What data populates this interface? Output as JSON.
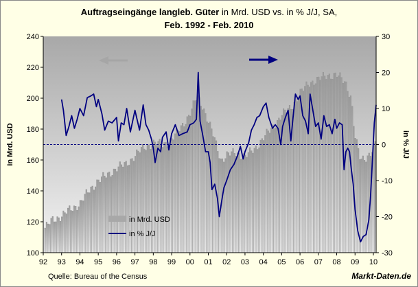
{
  "title": {
    "main_bold": "Auftragseingänge langleb. Güter",
    "main_rest": " in Mrd. USD vs. in % J/J, SA,",
    "period": "Feb. 1992 - Feb. 2010"
  },
  "footer": {
    "source": "Quelle: Bureau of the Census",
    "brand": "Markt-Daten.de"
  },
  "colors": {
    "plot_bg": "#c0c0c0",
    "bars": "#a8a8a8",
    "line": "#000080",
    "left_arrow": "#a6a6a6",
    "right_arrow": "#000080",
    "page_bg": "#ffffe6"
  },
  "chart_data": {
    "type": "bar+line",
    "title": "Auftragseingänge langleb. Güter in Mrd. USD vs. in % J/J, SA, Feb. 1992 - Feb. 2010",
    "x_tick_labels": [
      "92",
      "93",
      "94",
      "95",
      "96",
      "97",
      "98",
      "99",
      "00",
      "01",
      "02",
      "03",
      "04",
      "05",
      "06",
      "07",
      "08",
      "09",
      "10"
    ],
    "x_range": [
      1992.0,
      2010.15
    ],
    "left_axis": {
      "label": "in Mrd. USD",
      "min": 100,
      "max": 240,
      "ticks": [
        100,
        120,
        140,
        160,
        180,
        200,
        220,
        240
      ]
    },
    "right_axis": {
      "label": "in % J/J",
      "min": -30,
      "max": 30,
      "ticks": [
        -30,
        -20,
        -10,
        0,
        10,
        20,
        30
      ]
    },
    "zero_line_right": 0,
    "legend": {
      "position": "bottom-left",
      "entries": [
        "in Mrd. USD",
        "in % J/J"
      ]
    },
    "series": [
      {
        "name": "in Mrd. USD",
        "type": "bar",
        "axis": "left",
        "points": [
          [
            1992.1,
            116
          ],
          [
            1992.5,
            121
          ],
          [
            1993.0,
            124
          ],
          [
            1993.5,
            128
          ],
          [
            1994.0,
            132
          ],
          [
            1994.5,
            140
          ],
          [
            1995.0,
            147
          ],
          [
            1995.5,
            150
          ],
          [
            1996.0,
            155
          ],
          [
            1996.5,
            157
          ],
          [
            1997.0,
            163
          ],
          [
            1997.5,
            168
          ],
          [
            1998.0,
            171
          ],
          [
            1998.5,
            170
          ],
          [
            1999.0,
            173
          ],
          [
            1999.5,
            181
          ],
          [
            2000.0,
            190
          ],
          [
            2000.4,
            201
          ],
          [
            2000.7,
            195
          ],
          [
            2001.0,
            185
          ],
          [
            2001.3,
            175
          ],
          [
            2001.7,
            160
          ],
          [
            2002.0,
            163
          ],
          [
            2002.5,
            165
          ],
          [
            2003.0,
            162
          ],
          [
            2003.5,
            167
          ],
          [
            2004.0,
            174
          ],
          [
            2004.5,
            181
          ],
          [
            2005.0,
            189
          ],
          [
            2005.5,
            194
          ],
          [
            2006.0,
            203
          ],
          [
            2006.5,
            210
          ],
          [
            2007.0,
            212
          ],
          [
            2007.5,
            215
          ],
          [
            2008.0,
            215
          ],
          [
            2008.5,
            210
          ],
          [
            2008.8,
            200
          ],
          [
            2009.0,
            175
          ],
          [
            2009.3,
            160
          ],
          [
            2009.6,
            162
          ],
          [
            2009.9,
            165
          ],
          [
            2010.1,
            170
          ]
        ]
      },
      {
        "name": "in % J/J",
        "type": "line",
        "axis": "right",
        "points": [
          [
            1993.0,
            12.5
          ],
          [
            1993.1,
            9.5
          ],
          [
            1993.25,
            2.5
          ],
          [
            1993.4,
            5
          ],
          [
            1993.55,
            8
          ],
          [
            1993.7,
            4.5
          ],
          [
            1993.85,
            7
          ],
          [
            1994.0,
            10
          ],
          [
            1994.2,
            8
          ],
          [
            1994.4,
            13
          ],
          [
            1994.6,
            13.5
          ],
          [
            1994.75,
            14
          ],
          [
            1994.9,
            10.5
          ],
          [
            1995.0,
            12.5
          ],
          [
            1995.2,
            8.5
          ],
          [
            1995.35,
            4
          ],
          [
            1995.55,
            6.5
          ],
          [
            1995.75,
            6
          ],
          [
            1996.0,
            7.5
          ],
          [
            1996.1,
            1
          ],
          [
            1996.25,
            6
          ],
          [
            1996.4,
            5.5
          ],
          [
            1996.55,
            10
          ],
          [
            1996.75,
            3.5
          ],
          [
            1997.0,
            9.5
          ],
          [
            1997.25,
            4
          ],
          [
            1997.45,
            11
          ],
          [
            1997.6,
            5.5
          ],
          [
            1997.75,
            4
          ],
          [
            1997.9,
            1.5
          ],
          [
            1998.0,
            -1
          ],
          [
            1998.1,
            -5
          ],
          [
            1998.25,
            -1
          ],
          [
            1998.4,
            -2
          ],
          [
            1998.5,
            2
          ],
          [
            1998.7,
            3.5
          ],
          [
            1998.85,
            -1.5
          ],
          [
            1999.0,
            3
          ],
          [
            1999.2,
            5.5
          ],
          [
            1999.4,
            2.5
          ],
          [
            1999.6,
            3
          ],
          [
            1999.85,
            3.5
          ],
          [
            2000.0,
            5.5
          ],
          [
            2000.2,
            6
          ],
          [
            2000.35,
            7
          ],
          [
            2000.45,
            20
          ],
          [
            2000.55,
            6.5
          ],
          [
            2000.7,
            2.5
          ],
          [
            2000.85,
            -2
          ],
          [
            2001.0,
            -2
          ],
          [
            2001.1,
            -5
          ],
          [
            2001.2,
            -12.5
          ],
          [
            2001.35,
            -11
          ],
          [
            2001.5,
            -15
          ],
          [
            2001.6,
            -20
          ],
          [
            2001.75,
            -15
          ],
          [
            2001.85,
            -12
          ],
          [
            2002.0,
            -10
          ],
          [
            2002.2,
            -7
          ],
          [
            2002.4,
            -5.5
          ],
          [
            2002.6,
            -3
          ],
          [
            2002.75,
            -0.5
          ],
          [
            2002.9,
            -4
          ],
          [
            2003.0,
            -2
          ],
          [
            2003.2,
            0.5
          ],
          [
            2003.35,
            4
          ],
          [
            2003.5,
            5.5
          ],
          [
            2003.65,
            7.5
          ],
          [
            2003.8,
            8
          ],
          [
            2004.0,
            10.5
          ],
          [
            2004.15,
            11.5
          ],
          [
            2004.3,
            7.5
          ],
          [
            2004.5,
            4.5
          ],
          [
            2004.65,
            5.5
          ],
          [
            2004.8,
            4.5
          ],
          [
            2004.95,
            0
          ],
          [
            2005.05,
            5
          ],
          [
            2005.2,
            7.5
          ],
          [
            2005.35,
            9.5
          ],
          [
            2005.5,
            1
          ],
          [
            2005.6,
            6.5
          ],
          [
            2005.75,
            14
          ],
          [
            2005.9,
            12.5
          ],
          [
            2006.0,
            13.5
          ],
          [
            2006.15,
            8
          ],
          [
            2006.3,
            6.5
          ],
          [
            2006.45,
            3
          ],
          [
            2006.55,
            14
          ],
          [
            2006.7,
            9.5
          ],
          [
            2006.85,
            5
          ],
          [
            2007.0,
            6
          ],
          [
            2007.15,
            1.5
          ],
          [
            2007.3,
            8
          ],
          [
            2007.45,
            5
          ],
          [
            2007.6,
            5.5
          ],
          [
            2007.75,
            3
          ],
          [
            2007.9,
            7
          ],
          [
            2008.0,
            4.5
          ],
          [
            2008.15,
            6
          ],
          [
            2008.3,
            5.5
          ],
          [
            2008.4,
            -7
          ],
          [
            2008.5,
            -2
          ],
          [
            2008.6,
            -1
          ],
          [
            2008.7,
            -2
          ],
          [
            2008.8,
            -7
          ],
          [
            2008.9,
            -11
          ],
          [
            2009.0,
            -18
          ],
          [
            2009.15,
            -24
          ],
          [
            2009.3,
            -27
          ],
          [
            2009.45,
            -25.5
          ],
          [
            2009.6,
            -25
          ],
          [
            2009.75,
            -21
          ],
          [
            2009.85,
            -14
          ],
          [
            2009.95,
            -4
          ],
          [
            2010.05,
            6
          ],
          [
            2010.15,
            11
          ]
        ]
      }
    ]
  }
}
